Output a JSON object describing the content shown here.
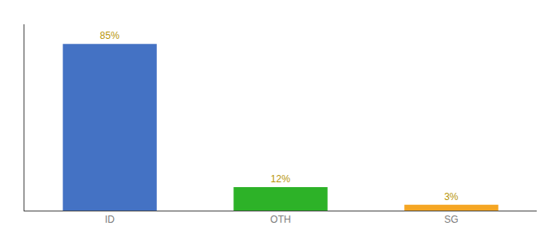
{
  "chart_data": {
    "type": "bar",
    "categories": [
      "ID",
      "OTH",
      "SG"
    ],
    "values": [
      85,
      12,
      3
    ],
    "value_labels": [
      "85%",
      "12%",
      "3%"
    ],
    "colors": [
      "#4472c4",
      "#2db228",
      "#f5a623"
    ],
    "ylim": [
      0,
      95
    ],
    "grid": false,
    "data_labels": true,
    "tick_labels": "x"
  }
}
